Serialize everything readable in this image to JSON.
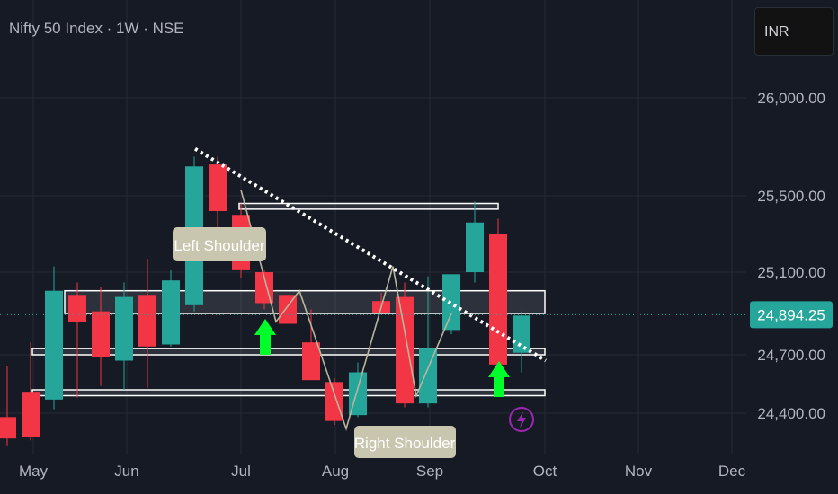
{
  "header": {
    "title": "Nifty 50 Index · 1W · NSE",
    "currency": "INR"
  },
  "colors": {
    "background": "#161a25",
    "up": "#26a69a",
    "down": "#f23645",
    "text": "#b2b5be",
    "grid": "#262a35",
    "arrow": "#00ff2a",
    "zone": "#ffffff",
    "label_bg": "#c8c6ae",
    "badge": "#9c27b0"
  },
  "chart_data": {
    "type": "candlestick",
    "title": "Nifty 50 Index · 1W · NSE",
    "y_axis": {
      "ticks": [
        26000,
        25500,
        25100,
        24700,
        24400
      ],
      "tick_labels": [
        "26,000.00",
        "25,500.00",
        "25,100.00",
        "24,700.00",
        "24,400.00"
      ],
      "range": [
        24250,
        26200
      ],
      "side": "right"
    },
    "x_axis": {
      "tick_labels": [
        "May",
        "Jun",
        "Jul",
        "Aug",
        "Sep",
        "Oct",
        "Nov",
        "Dec"
      ]
    },
    "current_price": {
      "value": 24894.25,
      "label": "24,894.25"
    },
    "candles": [
      {
        "o": 24380,
        "h": 24640,
        "l": 24230,
        "c": 24270
      },
      {
        "o": 24510,
        "h": 24760,
        "l": 24260,
        "c": 24280
      },
      {
        "o": 24470,
        "h": 25130,
        "l": 24420,
        "c": 25010
      },
      {
        "o": 24990,
        "h": 25050,
        "l": 24480,
        "c": 24860
      },
      {
        "o": 24910,
        "h": 25030,
        "l": 24540,
        "c": 24690
      },
      {
        "o": 24670,
        "h": 25050,
        "l": 24520,
        "c": 24980
      },
      {
        "o": 24990,
        "h": 25170,
        "l": 24530,
        "c": 24740
      },
      {
        "o": 24750,
        "h": 25110,
        "l": 24740,
        "c": 25060
      },
      {
        "o": 24940,
        "h": 25700,
        "l": 24910,
        "c": 25650
      },
      {
        "o": 25660,
        "h": 25700,
        "l": 25320,
        "c": 25420
      },
      {
        "o": 25400,
        "h": 25460,
        "l": 25070,
        "c": 25110
      },
      {
        "o": 25100,
        "h": 25110,
        "l": 24920,
        "c": 24950
      },
      {
        "o": 24990,
        "h": 24990,
        "l": 24850,
        "c": 24850
      },
      {
        "o": 24760,
        "h": 24920,
        "l": 24580,
        "c": 24570
      },
      {
        "o": 24560,
        "h": 24580,
        "l": 24340,
        "c": 24360
      },
      {
        "o": 24390,
        "h": 24660,
        "l": 24380,
        "c": 24610
      },
      {
        "o": 24960,
        "h": 25000,
        "l": 24900,
        "c": 24900
      },
      {
        "o": 24980,
        "h": 25050,
        "l": 24430,
        "c": 24450
      },
      {
        "o": 24450,
        "h": 25080,
        "l": 24430,
        "c": 24730
      },
      {
        "o": 24820,
        "h": 25080,
        "l": 24800,
        "c": 25090
      },
      {
        "o": 25100,
        "h": 25470,
        "l": 25050,
        "c": 25360
      },
      {
        "o": 25300,
        "h": 25380,
        "l": 24540,
        "c": 24650
      },
      {
        "o": 24710,
        "h": 24910,
        "l": 24610,
        "c": 24890
      }
    ],
    "zones": [
      {
        "top": 25460,
        "bottom": 25430
      },
      {
        "top": 25010,
        "bottom": 24900
      },
      {
        "top": 24730,
        "bottom": 24700
      },
      {
        "top": 24520,
        "bottom": 24490
      }
    ],
    "trendline": {
      "from": 25740,
      "to": 24670
    },
    "pattern_points": [
      25530,
      24860,
      25010,
      24320,
      25130,
      24490,
      24900
    ],
    "annotations": {
      "label1": "Left Shoulder",
      "label2": "Right Shoulder"
    }
  }
}
